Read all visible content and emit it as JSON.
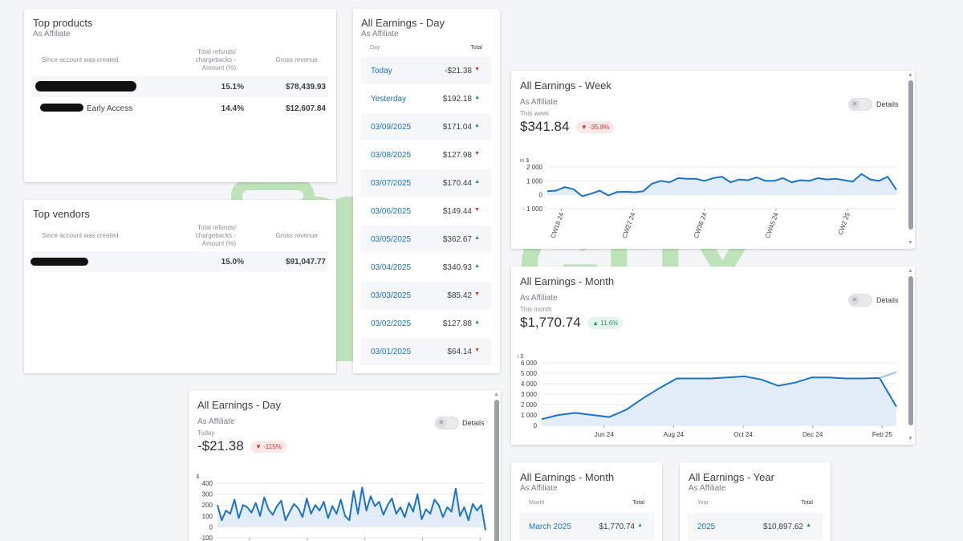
{
  "top_products": {
    "title": "Top products",
    "subtitle": "As Affiliate",
    "col_since": "Since account was created",
    "col_refunds": "Total refunds/ chargebacks - Amount (%)",
    "col_gross": "Gross revenue",
    "rows": [
      {
        "name": "",
        "refunds": "15.1%",
        "gross": "$78,439.93"
      },
      {
        "name": "Early Access",
        "refunds": "14.4%",
        "gross": "$12,607.84"
      }
    ]
  },
  "top_vendors": {
    "title": "Top vendors",
    "col_since": "Since account was created",
    "col_refunds": "Total refunds/ chargebacks - Amount (%)",
    "col_gross": "Gross revenue",
    "rows": [
      {
        "name": "",
        "refunds": "15.0%",
        "gross": "$91,047.77"
      }
    ]
  },
  "earnings_day_table": {
    "title": "All Earnings - Day",
    "subtitle": "As Affiliate",
    "col_day": "Day",
    "col_total": "Total",
    "rows": [
      {
        "day": "Today",
        "total": "-$21.38",
        "trend": "down"
      },
      {
        "day": "Yesterday",
        "total": "$192.18",
        "trend": "up"
      },
      {
        "day": "03/09/2025",
        "total": "$171.04",
        "trend": "up"
      },
      {
        "day": "03/08/2025",
        "total": "$127.98",
        "trend": "down"
      },
      {
        "day": "03/07/2025",
        "total": "$170.44",
        "trend": "up"
      },
      {
        "day": "03/06/2025",
        "total": "$149.44",
        "trend": "down"
      },
      {
        "day": "03/05/2025",
        "total": "$362.67",
        "trend": "up"
      },
      {
        "day": "03/04/2025",
        "total": "$340.93",
        "trend": "up"
      },
      {
        "day": "03/03/2025",
        "total": "$85.42",
        "trend": "down"
      },
      {
        "day": "03/02/2025",
        "total": "$127.88",
        "trend": "up"
      },
      {
        "day": "03/01/2025",
        "total": "$64.14",
        "trend": "down"
      }
    ]
  },
  "earnings_week": {
    "title": "All Earnings - Week",
    "subtitle": "As Affiliate",
    "period": "This week",
    "amount": "$341.84",
    "change": "-35.8%",
    "details_label": "Details"
  },
  "earnings_month": {
    "title": "All Earnings - Month",
    "subtitle": "As Affiliate",
    "period": "This month",
    "amount": "$1,770.74",
    "change": "11.6%",
    "details_label": "Details"
  },
  "earnings_day_chart": {
    "title": "All Earnings - Day",
    "subtitle": "As Affiliate",
    "period": "Today",
    "amount": "-$21.38",
    "change": "-115%",
    "details_label": "Details"
  },
  "earnings_month_table": {
    "title": "All Earnings - Month",
    "subtitle": "As Affiliate",
    "col_month": "Month",
    "col_total": "Total",
    "rows": [
      {
        "month": "March 2025",
        "total": "$1,770.74",
        "trend": "up"
      }
    ]
  },
  "earnings_year_table": {
    "title": "All Earnings - Year",
    "subtitle": "As Affiliate",
    "col_year": "Year",
    "col_total": "Total",
    "rows": [
      {
        "year": "2025",
        "total": "$10,897.62",
        "trend": "up"
      }
    ]
  },
  "watermark": {
    "text1": "AI GUY",
    "text2": "ACADEMY"
  },
  "colors": {
    "line": "#1a73c8",
    "area": "#dbe9f7",
    "up": "#1e9e5a",
    "down": "#d93030",
    "watermark": "#5cc24a"
  },
  "chart_data": [
    {
      "type": "area",
      "unit_label": "in $",
      "y_ticks": [
        "2 000",
        "1 000",
        "0",
        "- 1 000"
      ],
      "ylim": [
        -1000,
        2000
      ],
      "x_ticks": [
        "CW18 24",
        "CW27 24",
        "CW36 24",
        "CW45 24",
        "CW2 25"
      ],
      "values": [
        250,
        300,
        550,
        400,
        -100,
        80,
        300,
        -50,
        200,
        220,
        180,
        260,
        800,
        1000,
        900,
        1200,
        1150,
        1150,
        1000,
        1200,
        1300,
        900,
        1100,
        1050,
        1250,
        1000,
        1000,
        1200,
        900,
        1050,
        1000,
        1200,
        1100,
        1150,
        1050,
        950,
        1500,
        1100,
        1000,
        1300,
        350
      ]
    },
    {
      "type": "area",
      "unit_label": "in $",
      "y_ticks": [
        "6 000",
        "5 000",
        "4 000",
        "3 000",
        "2 000",
        "1 000",
        "0"
      ],
      "ylim": [
        0,
        6000
      ],
      "x_ticks": [
        "Jun 24",
        "Aug 24",
        "Oct 24",
        "Dec 24",
        "Feb 25"
      ],
      "values": [
        600,
        1000,
        1200,
        1000,
        800,
        1500,
        2600,
        3600,
        4500,
        4500,
        4500,
        4600,
        4700,
        4400,
        3800,
        4100,
        4600,
        4600,
        4500,
        4500,
        4550,
        1800
      ],
      "forecast": 5100
    },
    {
      "type": "area",
      "unit_label": "in $",
      "y_ticks": [
        "400",
        "300",
        "200",
        "100",
        "0",
        "-100"
      ],
      "ylim": [
        -100,
        400
      ],
      "values": [
        200,
        60,
        150,
        120,
        250,
        80,
        200,
        180,
        130,
        220,
        100,
        270,
        160,
        110,
        190,
        240,
        60,
        140,
        210,
        170,
        90,
        260,
        120,
        200,
        150,
        230,
        80,
        190,
        120,
        250,
        100,
        60,
        330,
        120,
        360,
        150,
        280,
        190,
        230,
        110,
        200,
        260,
        120,
        180,
        90,
        220,
        140,
        300,
        70,
        160,
        120,
        250,
        200,
        90,
        180,
        140,
        350,
        100,
        180,
        60,
        210,
        150,
        200,
        -30
      ]
    }
  ]
}
